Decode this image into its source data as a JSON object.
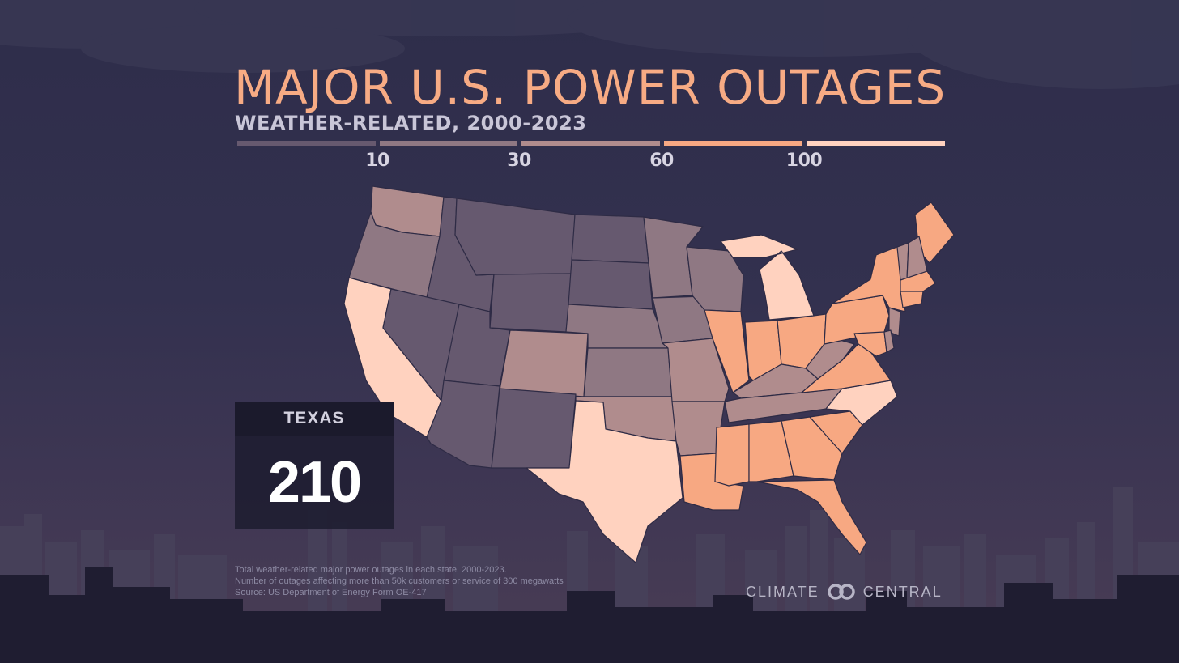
{
  "title": "MAJOR U.S. POWER OUTAGES",
  "subtitle": "WEATHER-RELATED, 2000-2023",
  "legend": {
    "ticks": [
      "10",
      "30",
      "60",
      "100"
    ],
    "bins": [
      {
        "max": 10,
        "color": "#66596f"
      },
      {
        "min": 10,
        "max": 30,
        "color": "#8f7883"
      },
      {
        "min": 30,
        "max": 60,
        "color": "#b08c8d"
      },
      {
        "min": 60,
        "max": 100,
        "color": "#f7a882"
      },
      {
        "min": 100,
        "color": "#ffd2bf"
      }
    ]
  },
  "map": {
    "region": "Contiguous United States",
    "states": [
      {
        "name": "Washington",
        "bin": 3
      },
      {
        "name": "Oregon",
        "bin": 2
      },
      {
        "name": "California",
        "bin": 5
      },
      {
        "name": "Idaho",
        "bin": 1
      },
      {
        "name": "Nevada",
        "bin": 1
      },
      {
        "name": "Montana",
        "bin": 1
      },
      {
        "name": "Wyoming",
        "bin": 1
      },
      {
        "name": "Utah",
        "bin": 1
      },
      {
        "name": "Arizona",
        "bin": 1
      },
      {
        "name": "Colorado",
        "bin": 3
      },
      {
        "name": "New Mexico",
        "bin": 1
      },
      {
        "name": "North Dakota",
        "bin": 1
      },
      {
        "name": "South Dakota",
        "bin": 1
      },
      {
        "name": "Nebraska",
        "bin": 2
      },
      {
        "name": "Kansas",
        "bin": 2
      },
      {
        "name": "Oklahoma",
        "bin": 3
      },
      {
        "name": "Texas",
        "bin": 5
      },
      {
        "name": "Minnesota",
        "bin": 2
      },
      {
        "name": "Iowa",
        "bin": 2
      },
      {
        "name": "Missouri",
        "bin": 3
      },
      {
        "name": "Arkansas",
        "bin": 3
      },
      {
        "name": "Louisiana",
        "bin": 4
      },
      {
        "name": "Wisconsin",
        "bin": 2
      },
      {
        "name": "Illinois",
        "bin": 4
      },
      {
        "name": "Michigan",
        "bin": 5
      },
      {
        "name": "Indiana",
        "bin": 4
      },
      {
        "name": "Ohio",
        "bin": 4
      },
      {
        "name": "Kentucky",
        "bin": 3
      },
      {
        "name": "Tennessee",
        "bin": 3
      },
      {
        "name": "Mississippi",
        "bin": 4
      },
      {
        "name": "Alabama",
        "bin": 4
      },
      {
        "name": "Georgia",
        "bin": 4
      },
      {
        "name": "Florida",
        "bin": 4
      },
      {
        "name": "South Carolina",
        "bin": 4
      },
      {
        "name": "North Carolina",
        "bin": 5
      },
      {
        "name": "Virginia",
        "bin": 4
      },
      {
        "name": "West Virginia",
        "bin": 3
      },
      {
        "name": "Pennsylvania",
        "bin": 4
      },
      {
        "name": "New York",
        "bin": 4
      },
      {
        "name": "Maine",
        "bin": 4
      },
      {
        "name": "Vermont",
        "bin": 3
      },
      {
        "name": "New Hampshire",
        "bin": 3
      },
      {
        "name": "Massachusetts",
        "bin": 4
      },
      {
        "name": "Connecticut",
        "bin": 4
      },
      {
        "name": "New Jersey",
        "bin": 3
      },
      {
        "name": "Maryland",
        "bin": 4
      },
      {
        "name": "Delaware",
        "bin": 3
      }
    ]
  },
  "callout": {
    "state": "TEXAS",
    "value": "210"
  },
  "notes": [
    "Total weather-related major power outages in each state, 2000-2023.",
    "Number of outages affecting more than 50k customers or service of 300 megawatts",
    "Source: US Department of Energy Form OE-417"
  ],
  "brand": {
    "left": "CLIMATE",
    "right": "CENTRAL"
  }
}
